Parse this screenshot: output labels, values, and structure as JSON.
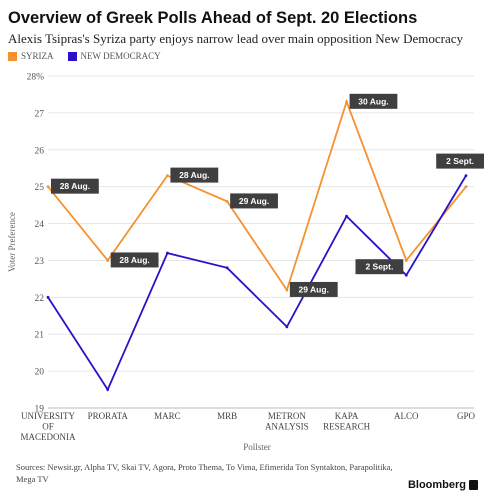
{
  "header": {
    "title": "Overview of Greek Polls Ahead of Sept. 20 Elections",
    "subtitle": "Alexis Tsipras's Syriza party enjoys narrow lead over main opposition New Democracy"
  },
  "footer": {
    "sources": "Sources: Newsit.gr, Alpha TV, Skai TV, Agora, Proto Thema, To Vima, Efimerida Ton Syntakton, Parapolitika, Mega TV",
    "brand": "Bloomberg"
  },
  "colors": {
    "syriza": "#f5922f",
    "new_democracy": "#2a12c8",
    "callout_bg": "#3f3f3f",
    "grid": "#e6e6e6"
  },
  "chart_data": {
    "type": "line",
    "title": "Overview of Greek Polls Ahead of Sept. 20 Elections",
    "xlabel": "Pollster",
    "ylabel": "Voter Preference",
    "ylim": [
      19,
      28
    ],
    "yticks": [
      "19",
      "20",
      "21",
      "22",
      "23",
      "24",
      "25",
      "26",
      "27",
      "28%"
    ],
    "grid": true,
    "legend": "top-left",
    "categories": [
      "UNIVERSITY OF MACEDONIA",
      "PRORATA",
      "MARC",
      "MRB",
      "METRON ANALYSIS",
      "KAPA RESEARCH",
      "ALCO",
      "GPO"
    ],
    "category_lines": [
      [
        "UNIVERSITY",
        "OF",
        "MACEDONIA"
      ],
      [
        "PRORATA"
      ],
      [
        "MARC"
      ],
      [
        "MRB"
      ],
      [
        "METRON",
        "ANALYSIS"
      ],
      [
        "KAPA",
        "RESEARCH"
      ],
      [
        "ALCO"
      ],
      [
        "GPO"
      ]
    ],
    "series": [
      {
        "name": "SYRIZA",
        "values": [
          25.0,
          23.0,
          25.3,
          24.6,
          22.2,
          27.3,
          23.0,
          25.0
        ]
      },
      {
        "name": "NEW DEMOCRACY",
        "values": [
          22.0,
          19.5,
          23.2,
          22.8,
          21.2,
          24.2,
          22.6,
          25.3
        ]
      }
    ],
    "annotations": [
      "28 Aug.",
      "28 Aug.",
      "28 Aug.",
      "29 Aug.",
      "29 Aug.",
      "30 Aug.",
      "2 Sept.",
      "2 Sept."
    ]
  }
}
